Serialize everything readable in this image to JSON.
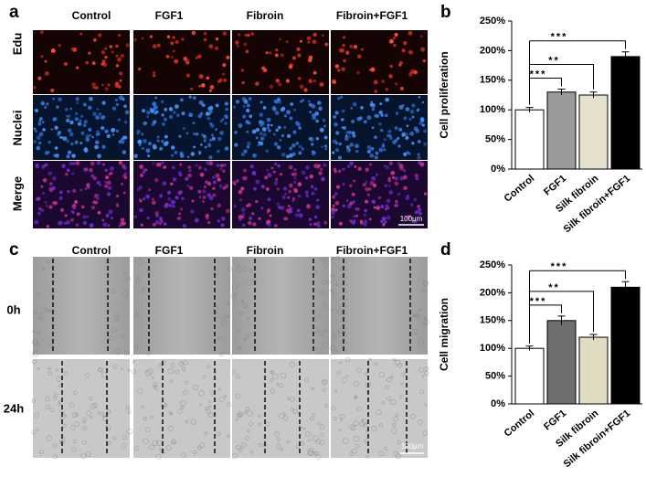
{
  "panel_a": {
    "label": "a",
    "columns": [
      "Control",
      "FGF1",
      "Fibroin",
      "Fibroin+FGF1"
    ],
    "rows": [
      "Edu",
      "Nuclei",
      "Merge"
    ],
    "scale_bar": "100μm"
  },
  "panel_c": {
    "label": "c",
    "columns": [
      "Control",
      "FGF1",
      "Fibroin",
      "Fibroin+FGF1"
    ],
    "rows": [
      "0h",
      "24h"
    ],
    "scale_bar": "100μm"
  },
  "chart_data": [
    {
      "type": "bar",
      "panel": "b",
      "y_label": "Cell proliferation",
      "categories": [
        "Control",
        "FGF1",
        "Silk fibroin",
        "Silk fibroin+FGF1"
      ],
      "values": [
        100,
        130,
        125,
        190
      ],
      "errors": [
        4,
        5,
        5,
        8
      ],
      "colors": [
        "#ffffff",
        "#9a9a9a",
        "#e6e1cc",
        "#000000"
      ],
      "ylim": [
        0,
        250
      ],
      "yticks": [
        {
          "value": 0,
          "label": "0%"
        },
        {
          "value": 50,
          "label": "50%"
        },
        {
          "value": 100,
          "label": "100%"
        },
        {
          "value": 150,
          "label": "150%"
        },
        {
          "value": 200,
          "label": "200%"
        },
        {
          "value": 250,
          "label": "250%"
        }
      ],
      "significance": [
        {
          "label": "***",
          "start": 0,
          "end": 1
        },
        {
          "label": "**",
          "start": 0,
          "end": 2
        },
        {
          "label": "***",
          "start": 0,
          "end": 3
        }
      ]
    },
    {
      "type": "bar",
      "panel": "d",
      "y_label": "Cell migration",
      "categories": [
        "Control",
        "FGF1",
        "Silk fibroin",
        "Silk fibroin+FGF1"
      ],
      "values": [
        100,
        150,
        120,
        210
      ],
      "errors": [
        4,
        8,
        5,
        10
      ],
      "colors": [
        "#ffffff",
        "#6e6e6e",
        "#e0dcc2",
        "#000000"
      ],
      "ylim": [
        0,
        250
      ],
      "yticks": [
        {
          "value": 0,
          "label": "0%"
        },
        {
          "value": 50,
          "label": "50%"
        },
        {
          "value": 100,
          "label": "100%"
        },
        {
          "value": 150,
          "label": "150%"
        },
        {
          "value": 200,
          "label": "200%"
        },
        {
          "value": 250,
          "label": "250%"
        }
      ],
      "significance": [
        {
          "label": "***",
          "start": 0,
          "end": 1
        },
        {
          "label": "**",
          "start": 0,
          "end": 2
        },
        {
          "label": "***",
          "start": 0,
          "end": 3
        }
      ]
    }
  ]
}
